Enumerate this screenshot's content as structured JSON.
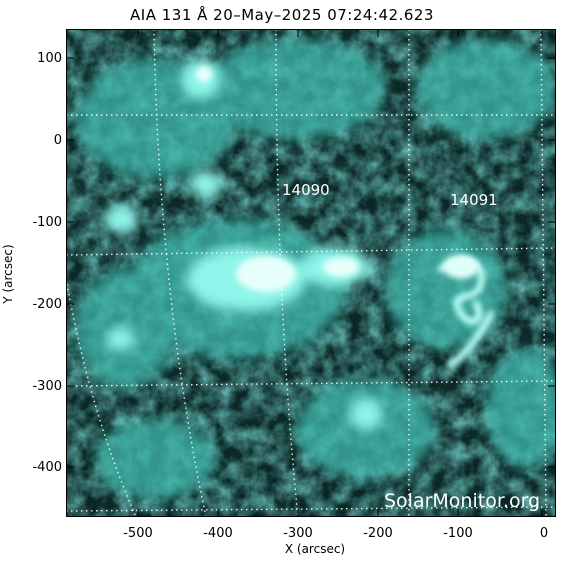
{
  "title": "AIA 131 Å 20–May–2025 07:24:42.623",
  "xlabel": "X (arcsec)",
  "ylabel": "Y (arcsec)",
  "x_ticks": [
    "-500",
    "-400",
    "-300",
    "-200",
    "-100",
    "0"
  ],
  "y_ticks": [
    "100",
    "0",
    "-100",
    "-200",
    "-300",
    "-400"
  ],
  "regions": [
    {
      "label": "14090"
    },
    {
      "label": "14091"
    }
  ],
  "watermark": "SolarMonitor.org",
  "colors": {
    "image_tint": "#3fd6c6",
    "background": "#0a2422",
    "grid": "#ffffff"
  }
}
